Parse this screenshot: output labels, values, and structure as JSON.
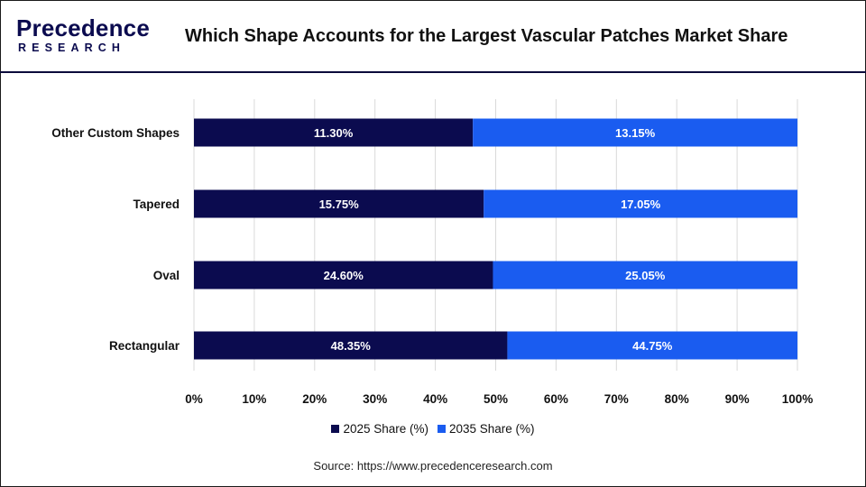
{
  "header": {
    "logo_top": "Precedence",
    "logo_bottom": "RESEARCH",
    "title": "Which Shape Accounts for the Largest Vascular Patches Market Share"
  },
  "colors": {
    "series_2025": "#0b0b4f",
    "series_2035": "#1a5cf0",
    "grid": "#d9d9d9"
  },
  "chart_data": {
    "type": "bar",
    "orientation": "horizontal",
    "stacked": "percent",
    "categories": [
      "Other Custom Shapes",
      "Tapered",
      "Oval",
      "Rectangular"
    ],
    "series": [
      {
        "name": "2025 Share (%)",
        "values": [
          11.3,
          15.75,
          24.6,
          48.35
        ],
        "labels": [
          "11.30%",
          "15.75%",
          "24.60%",
          "48.35%"
        ]
      },
      {
        "name": "2035 Share (%)",
        "values": [
          13.15,
          17.05,
          25.05,
          44.75
        ],
        "labels": [
          "13.15%",
          "17.05%",
          "25.05%",
          "44.75%"
        ]
      }
    ],
    "xticks": [
      "0%",
      "10%",
      "20%",
      "30%",
      "40%",
      "50%",
      "60%",
      "70%",
      "80%",
      "90%",
      "100%"
    ],
    "xlim": [
      0,
      100
    ],
    "grid": true,
    "legend_position": "bottom"
  },
  "source": "Source: https://www.precedenceresearch.com"
}
